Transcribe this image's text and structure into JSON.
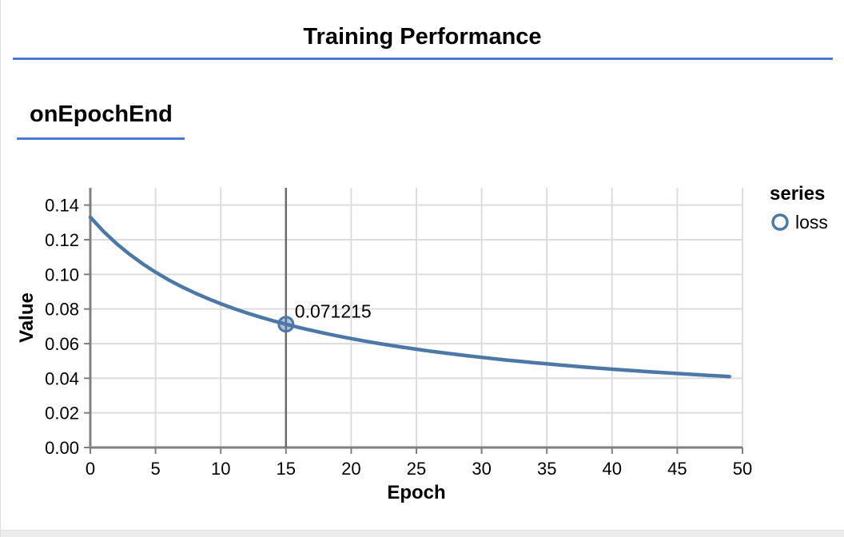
{
  "page": {
    "title": "Training Performance",
    "section_heading": "onEpochEnd"
  },
  "colors": {
    "accent_rule": "#4a7bd4",
    "line": "#4c78a8",
    "grid": "#dddddd",
    "axis": "#808080",
    "hover_rule": "#6b6b6b",
    "footer_bar": "#ececec"
  },
  "chart_data": {
    "type": "line",
    "title": "",
    "xlabel": "Epoch",
    "ylabel": "Value",
    "xlim": [
      0,
      50
    ],
    "ylim": [
      0,
      0.15
    ],
    "grid": true,
    "x_ticks": [
      {
        "value": 0,
        "label": "0"
      },
      {
        "value": 5,
        "label": "5"
      },
      {
        "value": 10,
        "label": "10"
      },
      {
        "value": 15,
        "label": "15"
      },
      {
        "value": 20,
        "label": "20"
      },
      {
        "value": 25,
        "label": "25"
      },
      {
        "value": 30,
        "label": "30"
      },
      {
        "value": 35,
        "label": "35"
      },
      {
        "value": 40,
        "label": "40"
      },
      {
        "value": 45,
        "label": "45"
      },
      {
        "value": 50,
        "label": "50"
      }
    ],
    "y_ticks": [
      {
        "value": 0,
        "label": "0.00"
      },
      {
        "value": 0.02,
        "label": "0.02"
      },
      {
        "value": 0.04,
        "label": "0.04"
      },
      {
        "value": 0.06,
        "label": "0.06"
      },
      {
        "value": 0.08,
        "label": "0.08"
      },
      {
        "value": 0.1,
        "label": "0.10"
      },
      {
        "value": 0.12,
        "label": "0.12"
      },
      {
        "value": 0.14,
        "label": "0.14"
      }
    ],
    "legend": {
      "title": "series",
      "position": "right",
      "entries": [
        {
          "label": "loss",
          "marker": "circle-outline"
        }
      ]
    },
    "series": [
      {
        "name": "loss",
        "x": [
          0,
          1,
          2,
          3,
          4,
          5,
          6,
          7,
          8,
          9,
          10,
          11,
          12,
          13,
          14,
          15,
          16,
          17,
          18,
          19,
          20,
          21,
          22,
          23,
          24,
          25,
          26,
          27,
          28,
          29,
          30,
          31,
          32,
          33,
          34,
          35,
          36,
          37,
          38,
          39,
          40,
          41,
          42,
          43,
          44,
          45,
          46,
          47,
          48,
          49
        ],
        "values": [
          0.133,
          0.12489,
          0.11783,
          0.11163,
          0.10614,
          0.10124,
          0.09685,
          0.09289,
          0.08929,
          0.08602,
          0.08302,
          0.08027,
          0.07773,
          0.07539,
          0.07322,
          0.071215,
          0.06931,
          0.06755,
          0.06591,
          0.06436,
          0.06291,
          0.06154,
          0.06024,
          0.05902,
          0.05787,
          0.05677,
          0.05573,
          0.05474,
          0.0538,
          0.0529,
          0.05205,
          0.05123,
          0.05045,
          0.0497,
          0.04898,
          0.0483,
          0.04764,
          0.04701,
          0.0464,
          0.04581,
          0.04525,
          0.04471,
          0.04418,
          0.04368,
          0.04319,
          0.04272,
          0.04227,
          0.04183,
          0.0414,
          0.04099
        ]
      }
    ],
    "highlight": {
      "series": "loss",
      "x": 15,
      "value": 0.071215,
      "label": "0.071215"
    }
  }
}
